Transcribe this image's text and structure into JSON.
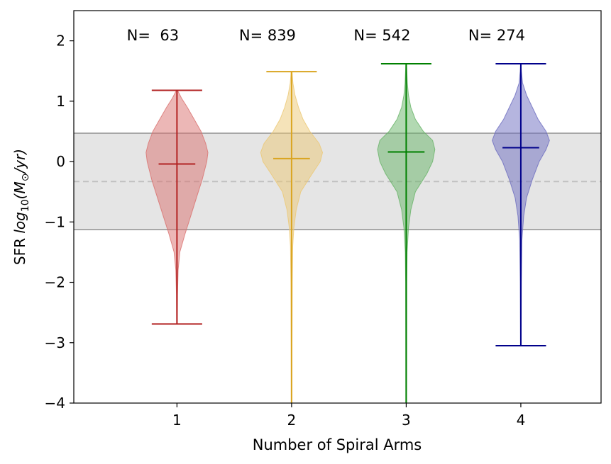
{
  "chart_data": {
    "type": "violin",
    "xlabel": "Number of Spiral Arms",
    "ylabel_prefix": "SFR ",
    "ylabel_math": "log",
    "ylabel_sub": "10",
    "ylabel_unit": "(M",
    "ylabel_sun": "⊙",
    "ylabel_tail": "/yr)",
    "xlim": [
      0.1,
      4.7
    ],
    "ylim": [
      -4,
      2.5
    ],
    "x_ticks": [
      1,
      2,
      3,
      4
    ],
    "x_tick_labels": [
      "1",
      "2",
      "3",
      "4"
    ],
    "y_ticks": [
      -4,
      -3,
      -2,
      -1,
      0,
      1,
      2
    ],
    "y_tick_labels": [
      "−4",
      "−3",
      "−2",
      "−1",
      "0",
      "1",
      "2"
    ],
    "reference_band": {
      "low": -1.13,
      "high": 0.47,
      "color": "#e5e5e5",
      "edge_color": "#808080"
    },
    "reference_line": {
      "y": -0.33,
      "color": "#c0c0c0"
    },
    "count_label_y": 2.1,
    "violins": [
      {
        "position": 1,
        "count_label": "N=  63",
        "min": -2.69,
        "max": 1.18,
        "median": -0.04,
        "color": "#b22222",
        "fill": "#d9706e",
        "profile": [
          [
            -2.69,
            0.003
          ],
          [
            -2.2,
            0.005
          ],
          [
            -1.8,
            0.01
          ],
          [
            -1.5,
            0.025
          ],
          [
            -1.2,
            0.07
          ],
          [
            -0.9,
            0.12
          ],
          [
            -0.6,
            0.17
          ],
          [
            -0.3,
            0.22
          ],
          [
            0.0,
            0.26
          ],
          [
            0.15,
            0.27
          ],
          [
            0.3,
            0.25
          ],
          [
            0.5,
            0.21
          ],
          [
            0.7,
            0.15
          ],
          [
            0.9,
            0.09
          ],
          [
            1.05,
            0.04
          ],
          [
            1.18,
            0.005
          ]
        ]
      },
      {
        "position": 2,
        "count_label": "N= 839",
        "min": -4.4,
        "max": 1.49,
        "median": 0.05,
        "color": "#daa520",
        "fill": "#ecc873",
        "profile": [
          [
            -4.4,
            0.003
          ],
          [
            -3.0,
            0.004
          ],
          [
            -2.0,
            0.006
          ],
          [
            -1.4,
            0.01
          ],
          [
            -1.1,
            0.02
          ],
          [
            -0.8,
            0.04
          ],
          [
            -0.5,
            0.08
          ],
          [
            -0.2,
            0.18
          ],
          [
            0.0,
            0.25
          ],
          [
            0.15,
            0.27
          ],
          [
            0.3,
            0.24
          ],
          [
            0.5,
            0.16
          ],
          [
            0.7,
            0.1
          ],
          [
            0.9,
            0.06
          ],
          [
            1.1,
            0.03
          ],
          [
            1.3,
            0.012
          ],
          [
            1.49,
            0.004
          ]
        ]
      },
      {
        "position": 3,
        "count_label": "N= 542",
        "min": -4.4,
        "max": 1.62,
        "median": 0.16,
        "color": "#008000",
        "fill": "#66b366",
        "profile": [
          [
            -4.4,
            0.003
          ],
          [
            -3.0,
            0.004
          ],
          [
            -2.0,
            0.005
          ],
          [
            -1.5,
            0.008
          ],
          [
            -1.1,
            0.02
          ],
          [
            -0.8,
            0.04
          ],
          [
            -0.5,
            0.08
          ],
          [
            -0.2,
            0.18
          ],
          [
            0.0,
            0.23
          ],
          [
            0.2,
            0.25
          ],
          [
            0.35,
            0.23
          ],
          [
            0.5,
            0.15
          ],
          [
            0.7,
            0.08
          ],
          [
            0.9,
            0.04
          ],
          [
            1.1,
            0.02
          ],
          [
            1.3,
            0.01
          ],
          [
            1.62,
            0.003
          ]
        ]
      },
      {
        "position": 4,
        "count_label": "N= 274",
        "min": -3.05,
        "max": 1.62,
        "median": 0.23,
        "color": "#00008b",
        "fill": "#6b6bbf",
        "profile": [
          [
            -3.05,
            0.003
          ],
          [
            -2.0,
            0.005
          ],
          [
            -1.3,
            0.01
          ],
          [
            -0.9,
            0.025
          ],
          [
            -0.6,
            0.05
          ],
          [
            -0.3,
            0.1
          ],
          [
            0.0,
            0.16
          ],
          [
            0.2,
            0.22
          ],
          [
            0.35,
            0.25
          ],
          [
            0.5,
            0.22
          ],
          [
            0.7,
            0.15
          ],
          [
            0.9,
            0.1
          ],
          [
            1.1,
            0.05
          ],
          [
            1.3,
            0.015
          ],
          [
            1.5,
            0.005
          ],
          [
            1.62,
            0.002
          ]
        ]
      }
    ]
  }
}
